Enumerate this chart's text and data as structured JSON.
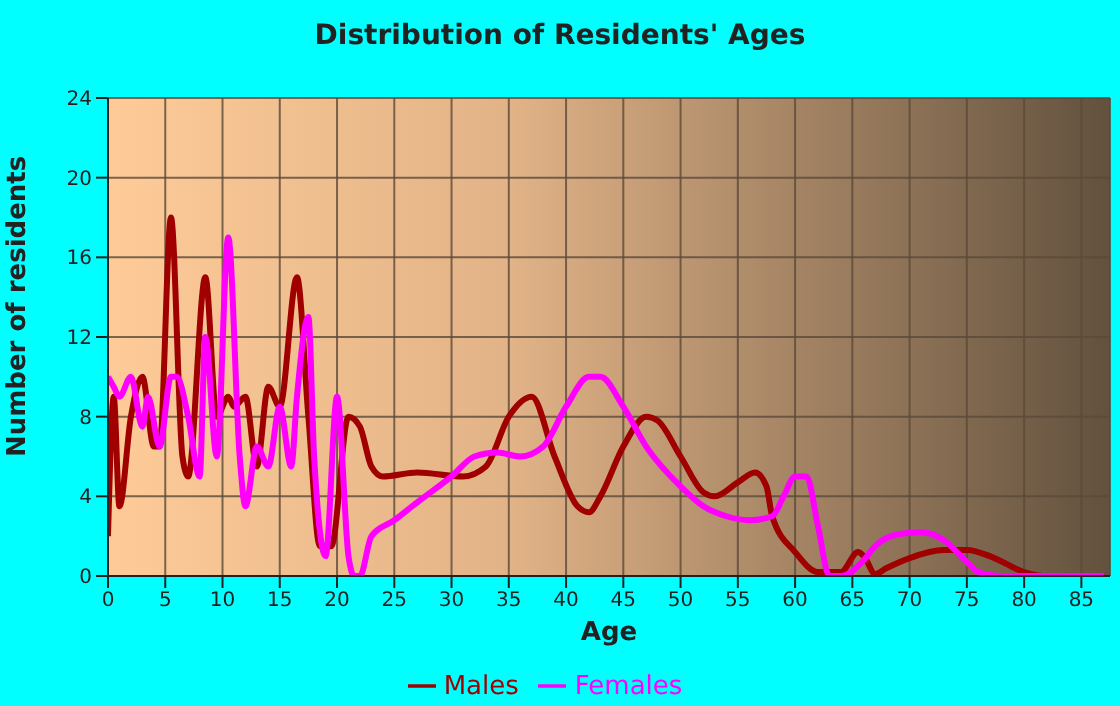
{
  "chart_data": {
    "type": "line",
    "title": "Distribution of Residents' Ages",
    "xlabel": "Age",
    "ylabel": "Number of residents",
    "xlim": [
      0,
      87.5
    ],
    "xticks": [
      0,
      5,
      10,
      15,
      20,
      25,
      30,
      35,
      40,
      45,
      50,
      55,
      60,
      65,
      70,
      75,
      80,
      85
    ],
    "ylim": [
      0,
      24
    ],
    "yticks": [
      0,
      4,
      8,
      12,
      16,
      20,
      24
    ],
    "grid": true,
    "legend": "bottom",
    "marker": "none",
    "series": [
      {
        "name": "Males",
        "color": "#a00000",
        "x": [
          0,
          0.5,
          1,
          2,
          3,
          4,
          4.5,
          5.5,
          6.5,
          7,
          8.5,
          9.5,
          10.5,
          11,
          12,
          13,
          14,
          15,
          16.5,
          17.5,
          18.5,
          19.5,
          21,
          22,
          23,
          24,
          27,
          31,
          33,
          35,
          37,
          39,
          41,
          42,
          43,
          45,
          47,
          48,
          50,
          52,
          53,
          55,
          56.5,
          57.5,
          58,
          60,
          62,
          64,
          65.5,
          66,
          67,
          68,
          70,
          73,
          75,
          77,
          80,
          82,
          87
        ],
        "values": [
          2,
          9,
          3.5,
          8,
          10,
          6.5,
          6.5,
          18,
          6,
          5,
          15,
          8,
          9,
          8.5,
          9,
          5.5,
          9.5,
          8.5,
          15,
          8,
          1.5,
          1.5,
          8,
          7.5,
          5.5,
          5,
          5.2,
          5,
          5.5,
          8,
          9,
          6,
          3.5,
          3.2,
          4,
          6.5,
          8,
          7.8,
          6,
          4.2,
          4,
          4.7,
          5.2,
          4.5,
          3,
          1.2,
          0.2,
          0.2,
          1.2,
          1,
          0.1,
          0.4,
          0.9,
          1.3,
          1.3,
          1,
          0.2,
          0,
          0
        ]
      },
      {
        "name": "Females",
        "color": "#ff00ff",
        "x": [
          0,
          0.5,
          1,
          2,
          3,
          3.5,
          4.5,
          5.5,
          6,
          7,
          8,
          8.5,
          9.5,
          10.5,
          11.5,
          12,
          13,
          14,
          15,
          16,
          16.5,
          17.5,
          18,
          19,
          20,
          21,
          21.5,
          22,
          23,
          25,
          27,
          30,
          32,
          34,
          36,
          38,
          40,
          42,
          43,
          45,
          47,
          50,
          52,
          54,
          56,
          58,
          59,
          60,
          61,
          62,
          63,
          64,
          66,
          67,
          69,
          71,
          73,
          75,
          76,
          78,
          80,
          87
        ],
        "values": [
          10,
          9.5,
          9,
          10,
          7.5,
          9,
          6.5,
          10,
          10,
          8,
          5,
          12,
          6,
          17,
          6,
          3.5,
          6.5,
          5.5,
          8.5,
          5.5,
          9,
          13,
          6,
          1,
          9,
          1,
          0,
          0,
          2,
          2.8,
          3.7,
          5,
          6,
          6.2,
          6,
          6.5,
          8.5,
          10,
          10,
          8.5,
          6.5,
          4.5,
          3.5,
          3,
          2.8,
          3,
          4,
          5,
          5,
          2.5,
          0,
          0,
          0.8,
          1.5,
          2.1,
          2.2,
          1.8,
          0.7,
          0.2,
          0,
          0,
          0
        ]
      }
    ]
  }
}
